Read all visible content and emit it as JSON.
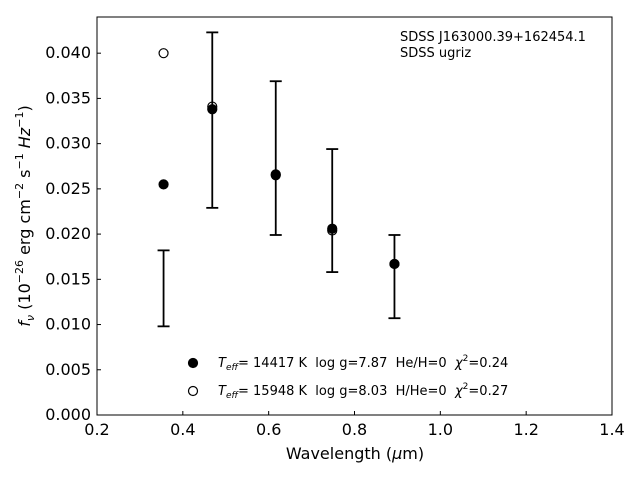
{
  "chart_data": {
    "type": "scatter",
    "xlabel_pre": "Wavelength (",
    "xlabel_sym": "μ",
    "xlabel_post": "m)",
    "ylabel_lead": "f",
    "ylabel_sub": "ν",
    "ylabel_open": " (10",
    "ylabel_exp1": "−26",
    "ylabel_mid1": " erg cm",
    "ylabel_exp2": "−2",
    "ylabel_mid2": " s",
    "ylabel_exp3": "−1",
    "ylabel_mid3": " Hz",
    "ylabel_exp4": "−1",
    "ylabel_close": ")",
    "xlim": [
      0.2,
      1.4
    ],
    "ylim": [
      0.0,
      0.044
    ],
    "xticks": [
      "0.2",
      "0.4",
      "0.6",
      "0.8",
      "1.0",
      "1.2",
      "1.4"
    ],
    "yticks": [
      "0.000",
      "0.005",
      "0.010",
      "0.015",
      "0.020",
      "0.025",
      "0.030",
      "0.035",
      "0.040"
    ],
    "annotations": [
      "SDSS J163000.39+162454.1",
      "SDSS ugriz"
    ],
    "observed": {
      "x": [
        0.3551,
        0.4686,
        0.6165,
        0.7481,
        0.8931
      ],
      "y": [
        0.014,
        0.0326,
        0.0284,
        0.0226,
        0.0153
      ],
      "err": [
        0.0042,
        0.0097,
        0.0085,
        0.0068,
        0.0046
      ]
    },
    "series": [
      {
        "marker": "filled",
        "x": [
          0.3551,
          0.4686,
          0.6165,
          0.7481,
          0.8931
        ],
        "y": [
          0.0255,
          0.0338,
          0.0265,
          0.0206,
          0.0167
        ],
        "legend": {
          "t_sym": "T",
          "t_sub": "eff",
          "text1": "= 14417 K  log g=7.87  He/H=0  ",
          "chi": "χ",
          "chi_exp": "2",
          "text2": "=0.24"
        }
      },
      {
        "marker": "open",
        "x": [
          0.3551,
          0.4686,
          0.6165,
          0.7481,
          0.8931
        ],
        "y": [
          0.04,
          0.0341,
          0.0266,
          0.0204,
          0.0167
        ],
        "legend": {
          "t_sym": "T",
          "t_sub": "eff",
          "text1": "= 15948 K  log g=8.03  H/He=0  ",
          "chi": "χ",
          "chi_exp": "2",
          "text2": "=0.27"
        }
      }
    ]
  }
}
